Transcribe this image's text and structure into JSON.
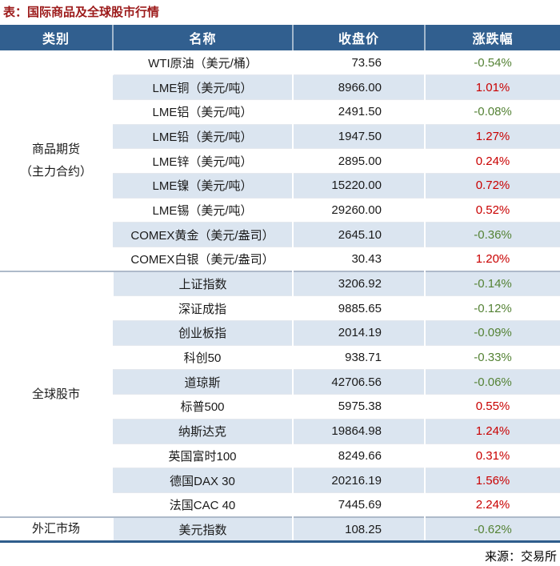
{
  "title": "表：国际商品及全球股市行情",
  "source": "来源：交易所",
  "colors": {
    "header_bg": "#315F8F",
    "row_alt_bg": "#DBE5F0",
    "up": "#C90000",
    "down": "#548235",
    "title": "#9C1A1A",
    "bottom_border": "#2F5D8C"
  },
  "chart_data": {
    "type": "table",
    "title": "表：国际商品及全球股市行情",
    "columns": [
      "类别",
      "名称",
      "收盘价",
      "涨跌幅"
    ],
    "sections": [
      {
        "category": "商品期货\n（主力合约）",
        "rows": [
          {
            "name": "WTI原油（美元/桶）",
            "price": "73.56",
            "change": "-0.54%",
            "direction": "down"
          },
          {
            "name": "LME铜（美元/吨）",
            "price": "8966.00",
            "change": "1.01%",
            "direction": "up"
          },
          {
            "name": "LME铝（美元/吨）",
            "price": "2491.50",
            "change": "-0.08%",
            "direction": "down"
          },
          {
            "name": "LME铅（美元/吨）",
            "price": "1947.50",
            "change": "1.27%",
            "direction": "up"
          },
          {
            "name": "LME锌（美元/吨）",
            "price": "2895.00",
            "change": "0.24%",
            "direction": "up"
          },
          {
            "name": "LME镍（美元/吨）",
            "price": "15220.00",
            "change": "0.72%",
            "direction": "up"
          },
          {
            "name": "LME锡（美元/吨）",
            "price": "29260.00",
            "change": "0.52%",
            "direction": "up"
          },
          {
            "name": "COMEX黄金（美元/盎司）",
            "price": "2645.10",
            "change": "-0.36%",
            "direction": "down"
          },
          {
            "name": "COMEX白银（美元/盎司）",
            "price": "30.43",
            "change": "1.20%",
            "direction": "up"
          }
        ]
      },
      {
        "category": "全球股市",
        "rows": [
          {
            "name": "上证指数",
            "price": "3206.92",
            "change": "-0.14%",
            "direction": "down"
          },
          {
            "name": "深证成指",
            "price": "9885.65",
            "change": "-0.12%",
            "direction": "down"
          },
          {
            "name": "创业板指",
            "price": "2014.19",
            "change": "-0.09%",
            "direction": "down"
          },
          {
            "name": "科创50",
            "price": "938.71",
            "change": "-0.33%",
            "direction": "down"
          },
          {
            "name": "道琼斯",
            "price": "42706.56",
            "change": "-0.06%",
            "direction": "down"
          },
          {
            "name": "标普500",
            "price": "5975.38",
            "change": "0.55%",
            "direction": "up"
          },
          {
            "name": "纳斯达克",
            "price": "19864.98",
            "change": "1.24%",
            "direction": "up"
          },
          {
            "name": "英国富时100",
            "price": "8249.66",
            "change": "0.31%",
            "direction": "up"
          },
          {
            "name": "德国DAX 30",
            "price": "20216.19",
            "change": "1.56%",
            "direction": "up"
          },
          {
            "name": "法国CAC 40",
            "price": "7445.69",
            "change": "2.24%",
            "direction": "up"
          }
        ]
      },
      {
        "category": "外汇市场",
        "rows": [
          {
            "name": "美元指数",
            "price": "108.25",
            "change": "-0.62%",
            "direction": "down"
          }
        ]
      }
    ]
  }
}
